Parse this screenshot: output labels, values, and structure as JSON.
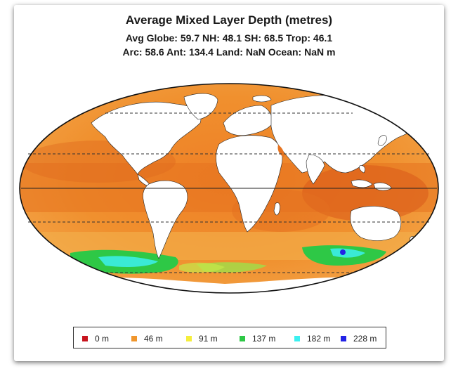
{
  "title": "Average Mixed Layer Depth (metres)",
  "stats_line1": "Avg Globe: 59.7  NH: 48.1  SH: 68.5  Trop: 46.1",
  "stats_line2": "Arc: 58.6  Ant: 134.4  Land: NaN Ocean: NaN m",
  "legend": [
    {
      "label": "0 m",
      "color": "#c8141e"
    },
    {
      "label": "46 m",
      "color": "#f0962d"
    },
    {
      "label": "91 m",
      "color": "#f5ee3c"
    },
    {
      "label": "137 m",
      "color": "#2ec846"
    },
    {
      "label": "182 m",
      "color": "#3cf0f0"
    },
    {
      "label": "228 m",
      "color": "#2323e6"
    }
  ],
  "map_colors": {
    "ocean_main": "#ee8a2c",
    "ocean_light": "#f5a84a",
    "ocean_dark": "#e0641e",
    "land": "#ffffff",
    "deep_south": "#2ec846",
    "deeper_south": "#3cf0f0"
  }
}
